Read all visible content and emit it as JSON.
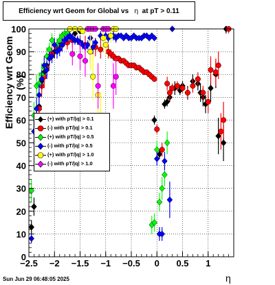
{
  "title": {
    "prefix": "Efficiency wrt Geom for Global vs",
    "eta": "η",
    "suffix": "at pT > 0.11"
  },
  "timestamp": "Sun Jun 29 06:48:05 2025",
  "chart_data": {
    "type": "scatter",
    "xlabel": "η",
    "ylabel": "Efficiency wrt Geom (%)",
    "xlim": [
      -2.5,
      1.5
    ],
    "ylim": [
      0,
      100
    ],
    "x_ticks": [
      -2.5,
      -2,
      -1.5,
      -1,
      -0.5,
      0,
      0.5,
      1
    ],
    "x_tick_labels": [
      "−2.5",
      "−2",
      "−1.5",
      "−1",
      "−0.5",
      "0",
      "0.5",
      "1"
    ],
    "y_ticks": [
      0,
      10,
      20,
      30,
      40,
      50,
      60,
      70,
      80,
      90,
      100
    ],
    "y_tick_labels": [
      "0",
      "10",
      "20",
      "30",
      "40",
      "50",
      "60",
      "70",
      "80",
      "90",
      "100"
    ],
    "grid": true,
    "legend_position": "middle-left",
    "series": [
      {
        "name": "(+) with pT/|q| > 0.1",
        "color": "#000000",
        "marker": "diamond",
        "points": [
          [
            -2.45,
            13,
            3
          ],
          [
            -2.4,
            22,
            4
          ],
          [
            -2.35,
            60,
            6
          ],
          [
            -2.3,
            66,
            5
          ],
          [
            -2.25,
            77,
            4
          ],
          [
            -2.2,
            81,
            4
          ],
          [
            -2.15,
            84,
            3
          ],
          [
            -2.1,
            87,
            3
          ],
          [
            -2.0,
            90,
            3
          ],
          [
            -1.9,
            93,
            2
          ],
          [
            -1.8,
            95,
            2
          ],
          [
            -1.7,
            97,
            1
          ],
          [
            -1.6,
            98,
            1
          ],
          [
            -1.5,
            99,
            1
          ],
          [
            -0.05,
            60,
            2
          ],
          [
            0.05,
            45,
            2
          ],
          [
            0.15,
            67,
            2
          ],
          [
            0.2,
            68,
            2
          ],
          [
            0.25,
            70,
            2
          ],
          [
            0.35,
            74,
            3
          ],
          [
            0.45,
            73,
            2
          ],
          [
            0.5,
            75,
            2
          ],
          [
            0.6,
            72,
            3
          ],
          [
            0.7,
            77,
            3
          ],
          [
            0.8,
            76,
            3
          ],
          [
            0.85,
            72,
            4
          ],
          [
            0.9,
            70,
            4
          ],
          [
            0.95,
            67,
            4
          ],
          [
            1.05,
            74,
            6
          ],
          [
            1.15,
            80,
            6
          ],
          [
            1.2,
            53,
            8
          ],
          [
            1.3,
            50,
            8
          ],
          [
            1.35,
            100,
            2
          ]
        ]
      },
      {
        "name": "(-) with pT/|q| > 0.1",
        "color": "#ff0000",
        "marker": "circle",
        "points": [
          [
            -2.3,
            65,
            6
          ],
          [
            -2.25,
            75,
            5
          ],
          [
            -2.2,
            79,
            5
          ],
          [
            -2.15,
            83,
            4
          ],
          [
            -2.1,
            88,
            4
          ],
          [
            -2.05,
            89,
            3
          ],
          [
            -1.95,
            92,
            3
          ],
          [
            -1.85,
            93,
            3
          ],
          [
            -1.75,
            94,
            3
          ],
          [
            -1.65,
            95,
            3
          ],
          [
            -1.5,
            94,
            3
          ],
          [
            -1.4,
            93,
            4
          ],
          [
            -1.3,
            90,
            5
          ],
          [
            -1.2,
            92,
            4
          ],
          [
            -1.1,
            91,
            4
          ],
          [
            -0.95,
            90,
            3
          ],
          [
            -0.9,
            89,
            2
          ],
          [
            -0.85,
            88,
            2
          ],
          [
            -0.8,
            87,
            1
          ],
          [
            -0.75,
            87,
            1
          ],
          [
            -0.7,
            86,
            1
          ],
          [
            -0.65,
            86,
            1
          ],
          [
            -0.6,
            85,
            1
          ],
          [
            -0.55,
            84,
            1
          ],
          [
            -0.5,
            84,
            1
          ],
          [
            -0.45,
            84,
            1
          ],
          [
            -0.4,
            83,
            1
          ],
          [
            -0.35,
            83,
            1
          ],
          [
            -0.3,
            82,
            1
          ],
          [
            -0.25,
            81,
            1
          ],
          [
            -0.2,
            81,
            1
          ],
          [
            -0.15,
            80,
            1
          ],
          [
            -0.1,
            79,
            1
          ],
          [
            -0.05,
            78,
            1
          ],
          [
            0,
            56,
            2
          ],
          [
            0.1,
            47,
            3
          ],
          [
            0.2,
            76,
            3
          ],
          [
            0.25,
            72,
            3
          ],
          [
            0.3,
            74,
            2
          ],
          [
            0.4,
            75,
            2
          ],
          [
            0.5,
            74,
            2
          ],
          [
            0.6,
            72,
            2
          ],
          [
            0.7,
            75,
            3
          ],
          [
            0.8,
            78,
            3
          ],
          [
            0.9,
            72,
            3
          ],
          [
            1.0,
            68,
            5
          ],
          [
            1.05,
            82,
            6
          ],
          [
            1.15,
            81,
            6
          ],
          [
            1.2,
            84,
            6
          ],
          [
            1.25,
            55,
            8
          ],
          [
            1.3,
            60,
            8
          ],
          [
            1.4,
            100,
            2
          ]
        ]
      },
      {
        "name": "(+) with pT/|q| > 0.5",
        "color": "#00ff00",
        "marker": "diamond",
        "points": [
          [
            -2.45,
            29,
            5
          ],
          [
            -2.4,
            62,
            6
          ],
          [
            -2.35,
            75,
            5
          ],
          [
            -2.3,
            76,
            5
          ],
          [
            -2.25,
            80,
            5
          ],
          [
            -2.2,
            83,
            4
          ],
          [
            -2.15,
            88,
            4
          ],
          [
            -2.1,
            91,
            3
          ],
          [
            -2.05,
            95,
            3
          ],
          [
            -1.95,
            93,
            3
          ],
          [
            -1.9,
            95,
            3
          ],
          [
            -1.85,
            97,
            2
          ],
          [
            -1.8,
            98,
            2
          ],
          [
            -1.75,
            98,
            2
          ],
          [
            -0.1,
            14,
            4
          ],
          [
            -0.05,
            15,
            4
          ],
          [
            0.0,
            47,
            4
          ],
          [
            0.05,
            24,
            4
          ],
          [
            0.1,
            30,
            5
          ],
          [
            0.15,
            36,
            5
          ],
          [
            0.2,
            50,
            5
          ]
        ]
      },
      {
        "name": "(-) with pT/|q| > 0.5",
        "color": "#0000ff",
        "marker": "diamond",
        "points": [
          [
            -2.45,
            8,
            2
          ],
          [
            -2.4,
            55,
            6
          ],
          [
            -2.35,
            65,
            5
          ],
          [
            -2.3,
            71,
            5
          ],
          [
            -2.25,
            78,
            4
          ],
          [
            -2.2,
            84,
            4
          ],
          [
            -2.15,
            82,
            4
          ],
          [
            -2.1,
            87,
            3
          ],
          [
            -2.05,
            88,
            3
          ],
          [
            -2.0,
            93,
            3
          ],
          [
            -1.95,
            90,
            3
          ],
          [
            -1.9,
            91,
            3
          ],
          [
            -1.85,
            93,
            3
          ],
          [
            -1.8,
            95,
            2
          ],
          [
            -1.75,
            96,
            2
          ],
          [
            -1.7,
            97,
            2
          ],
          [
            -1.65,
            96,
            2
          ],
          [
            -1.6,
            95,
            2
          ],
          [
            -1.55,
            95,
            2
          ],
          [
            -1.5,
            94,
            2
          ],
          [
            -1.45,
            93,
            2
          ],
          [
            -1.4,
            92,
            2
          ],
          [
            -1.35,
            93,
            2
          ],
          [
            -1.3,
            96,
            2
          ],
          [
            -1.25,
            92,
            3
          ],
          [
            -1.2,
            94,
            2
          ],
          [
            -1.1,
            97,
            2
          ],
          [
            -1.0,
            97,
            2
          ],
          [
            -0.95,
            96,
            2
          ],
          [
            -0.9,
            97,
            2
          ],
          [
            -0.85,
            97,
            2
          ],
          [
            -0.8,
            96,
            2
          ],
          [
            -0.75,
            97,
            1
          ],
          [
            -0.7,
            97,
            1
          ],
          [
            -0.65,
            96,
            1
          ],
          [
            -0.6,
            97,
            1
          ],
          [
            -0.55,
            96,
            1
          ],
          [
            -0.5,
            96,
            1
          ],
          [
            -0.45,
            97,
            1
          ],
          [
            -0.4,
            96,
            1
          ],
          [
            -0.35,
            96,
            1
          ],
          [
            -0.3,
            96,
            1
          ],
          [
            -0.25,
            97,
            1
          ],
          [
            -0.2,
            97,
            1
          ],
          [
            -0.15,
            96,
            1
          ],
          [
            -0.1,
            97,
            1
          ],
          [
            -0.05,
            96,
            1
          ],
          [
            0.0,
            43,
            3
          ],
          [
            0.05,
            10,
            3
          ],
          [
            0.1,
            10,
            3
          ],
          [
            0.15,
            42,
            4
          ],
          [
            0.25,
            25,
            8
          ],
          [
            0.3,
            100,
            1
          ]
        ]
      },
      {
        "name": "(+) with pT/|q| > 1.0",
        "color": "#ffff00",
        "marker": "circle",
        "points": [
          [
            -1.7,
            100,
            1
          ],
          [
            -1.6,
            100,
            1
          ],
          [
            -1.5,
            100,
            1
          ],
          [
            -1.45,
            99,
            1
          ],
          [
            -1.35,
            100,
            1
          ],
          [
            -1.3,
            90,
            8
          ],
          [
            -1.25,
            79,
            10
          ],
          [
            -1.15,
            71,
            10
          ],
          [
            -1.1,
            60,
            12
          ],
          [
            -1.05,
            96,
            4
          ],
          [
            -1.0,
            93,
            4
          ],
          [
            -0.9,
            97,
            3
          ],
          [
            -0.85,
            100,
            1
          ],
          [
            -0.8,
            100,
            1
          ]
        ]
      },
      {
        "name": "(-) with pT/|q| > 1.0",
        "color": "#ff00ff",
        "marker": "circle",
        "points": [
          [
            -1.65,
            89,
            5
          ],
          [
            -1.5,
            88,
            6
          ],
          [
            -1.4,
            86,
            7
          ],
          [
            -1.35,
            100,
            1
          ],
          [
            -1.3,
            100,
            1
          ],
          [
            -1.25,
            100,
            1
          ],
          [
            -1.2,
            100,
            1
          ],
          [
            -1.15,
            75,
            10
          ],
          [
            -1.05,
            100,
            1
          ],
          [
            -1.0,
            100,
            1
          ],
          [
            -0.95,
            100,
            1
          ],
          [
            -0.85,
            75,
            10
          ],
          [
            -0.8,
            79,
            8
          ]
        ]
      }
    ]
  }
}
